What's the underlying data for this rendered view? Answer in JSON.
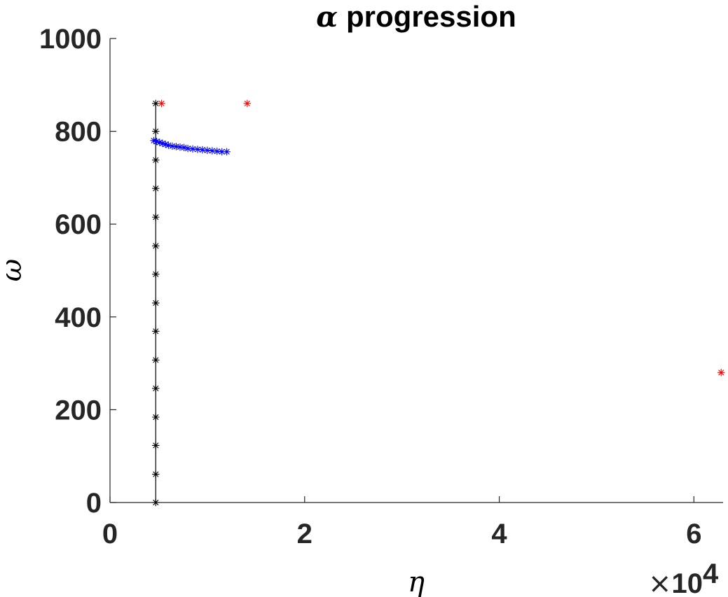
{
  "chart_data": {
    "type": "scatter",
    "title_symbol": "α",
    "title_text": "progression",
    "xlabel": "η",
    "ylabel": "ω",
    "x_exponent_times": "×",
    "x_exponent_base": "10",
    "x_exponent_power": "4",
    "xlim": [
      0,
      6.3
    ],
    "ylim": [
      0,
      1000
    ],
    "x_ticks": [
      0,
      2,
      4,
      6
    ],
    "x_tick_labels": [
      "0",
      "2",
      "4",
      "6"
    ],
    "y_ticks": [
      0,
      200,
      400,
      600,
      800,
      1000
    ],
    "y_tick_labels": [
      "0",
      "200",
      "400",
      "600",
      "800",
      "1000"
    ],
    "grid": false,
    "marker": "*",
    "series": [
      {
        "color": "#000000",
        "line": true,
        "x": [
          0.47,
          0.47,
          0.47,
          0.47,
          0.47,
          0.47,
          0.47,
          0.47,
          0.47,
          0.47,
          0.47,
          0.47,
          0.47,
          0.47,
          0.47
        ],
        "y": [
          860,
          800,
          738,
          677,
          615,
          553,
          492,
          430,
          369,
          307,
          246,
          184,
          123,
          61,
          0
        ]
      },
      {
        "color": "#0000ff",
        "line": false,
        "x": [
          0.45,
          0.48,
          0.51,
          0.54,
          0.57,
          0.6,
          0.64,
          0.68,
          0.72,
          0.76,
          0.8,
          0.85,
          0.9,
          0.95,
          1.0,
          1.05,
          1.1,
          1.15,
          1.2
        ],
        "y": [
          780,
          778,
          776,
          774,
          772,
          770,
          768,
          767,
          766,
          765,
          763,
          762,
          761,
          760,
          759,
          758,
          757,
          756,
          756
        ]
      },
      {
        "color": "#ff0000",
        "line": false,
        "x": [
          0.53,
          1.41,
          6.28
        ],
        "y": [
          860,
          860,
          280
        ]
      }
    ]
  }
}
